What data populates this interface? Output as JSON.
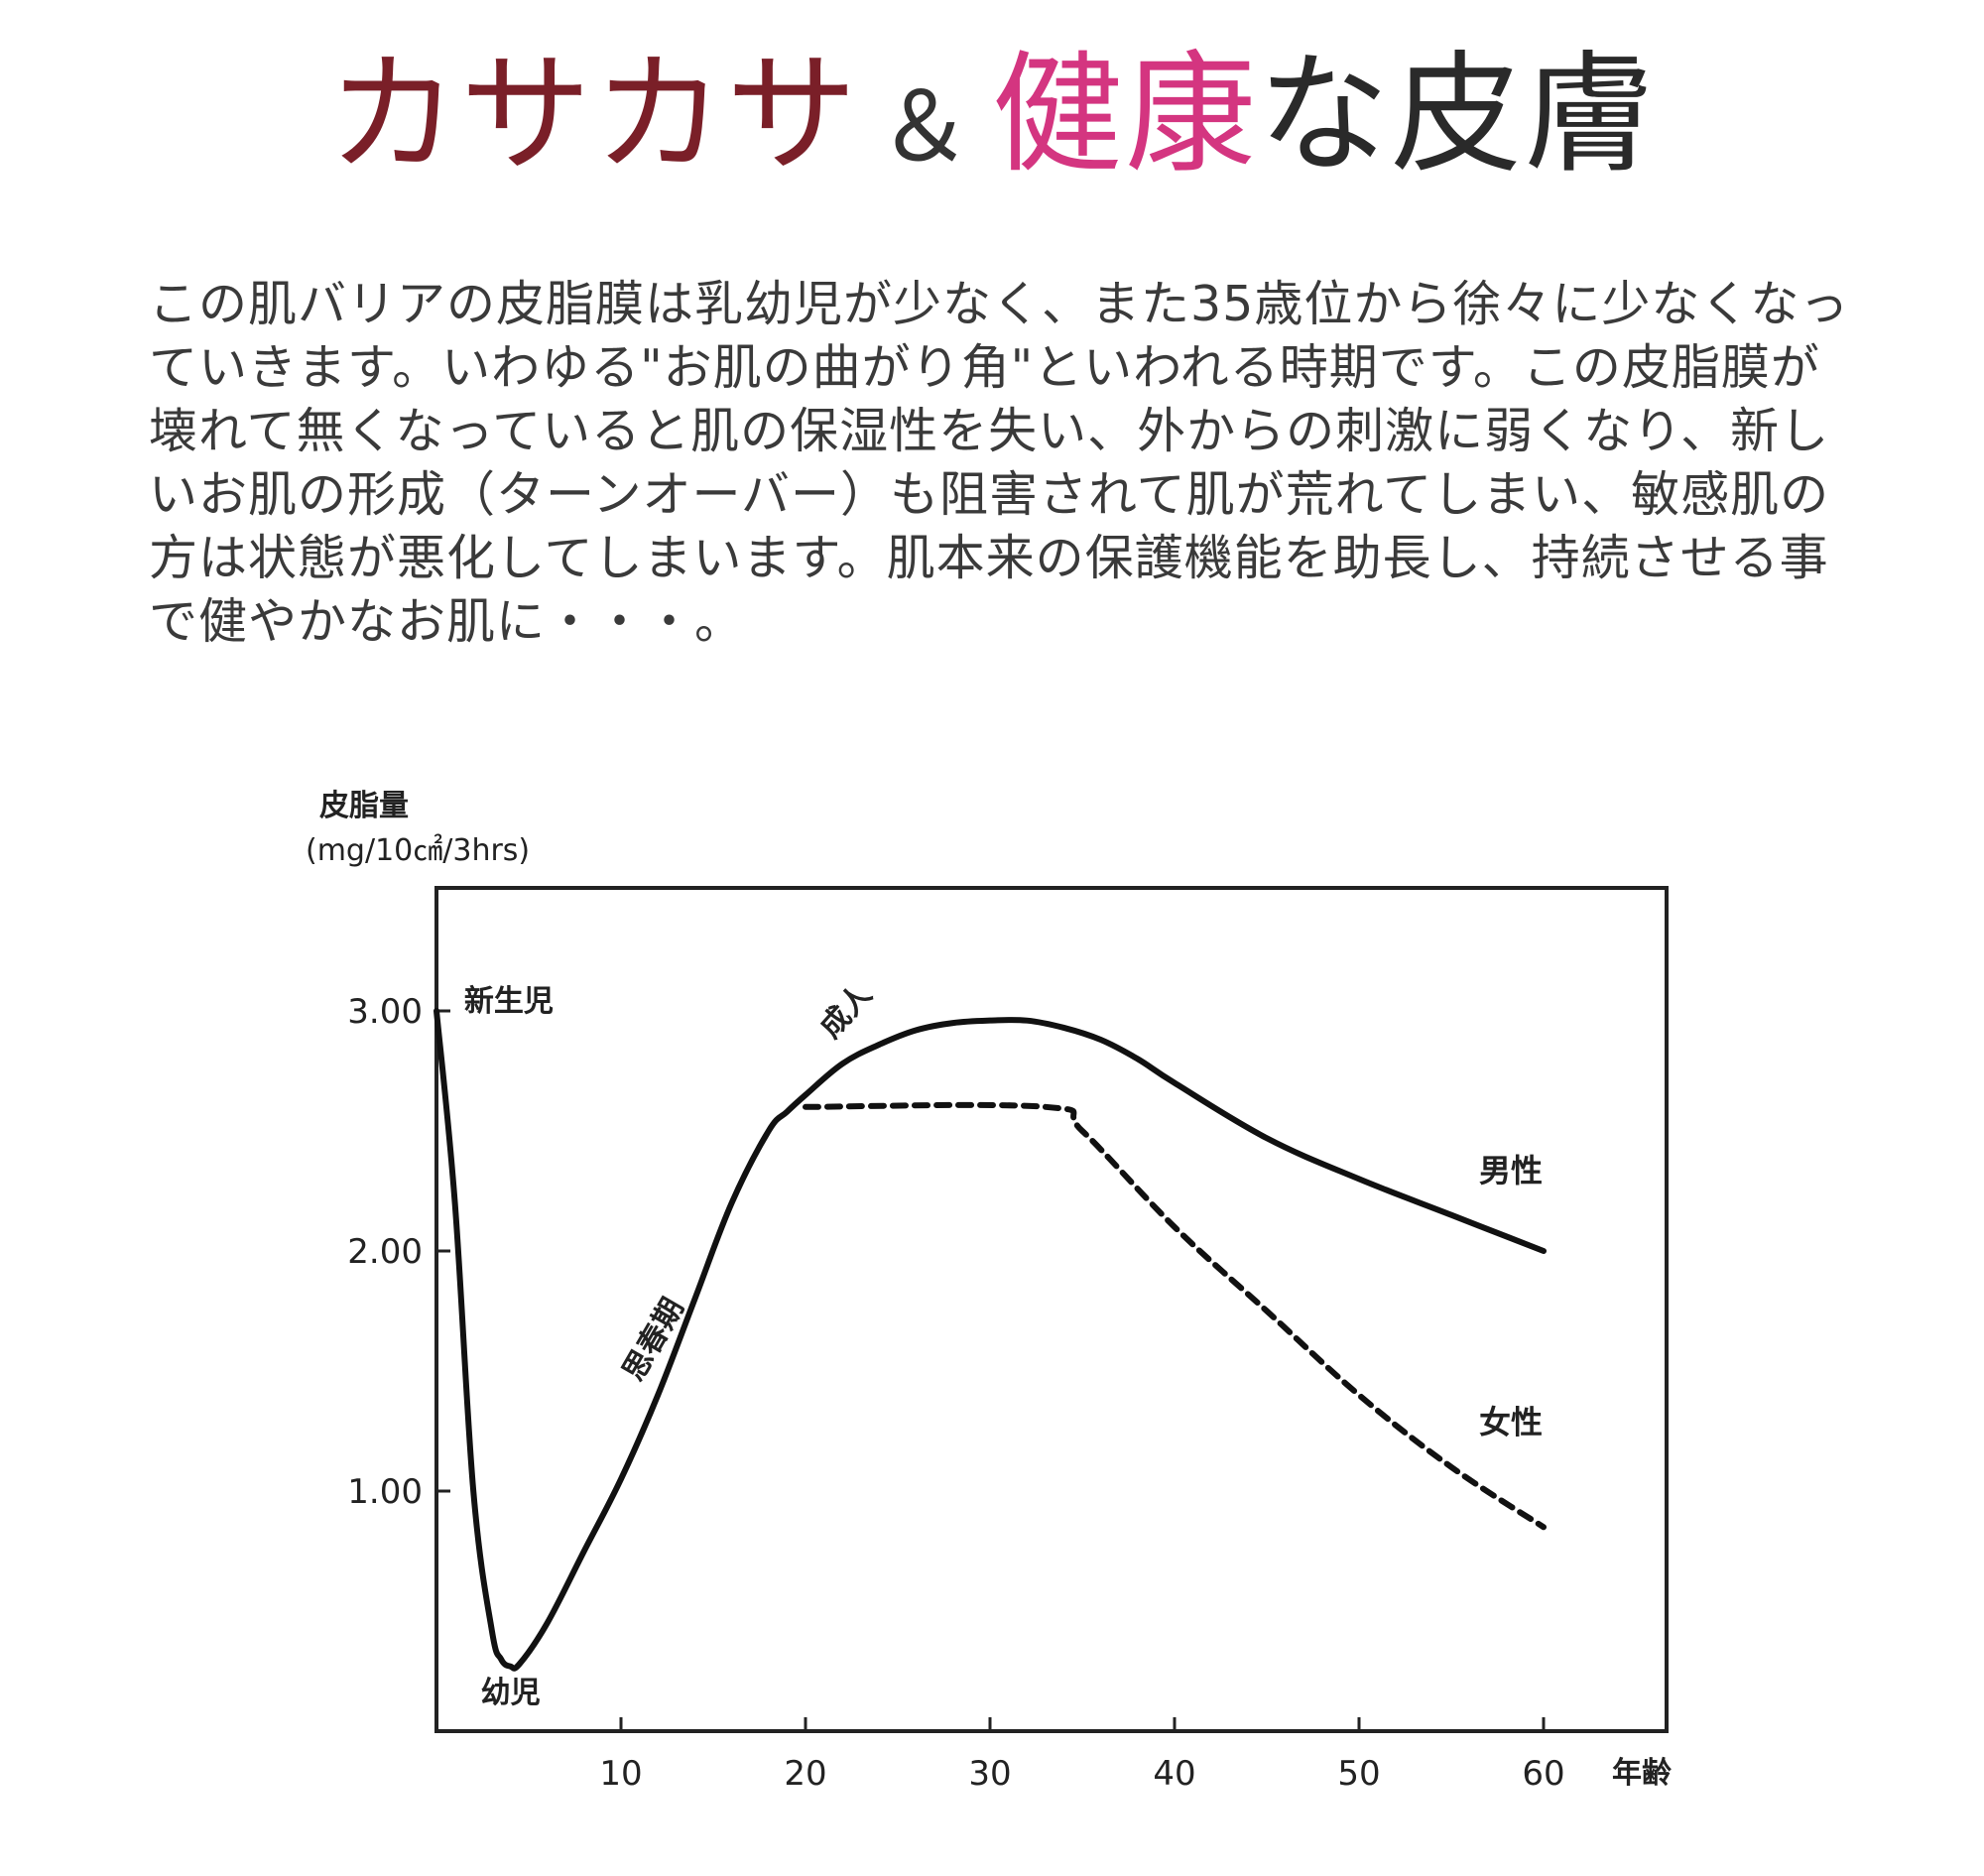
{
  "header": {
    "title_part1": "カサカサ",
    "title_part2": "＆",
    "title_part3": "健康",
    "title_part4": "な皮膚",
    "colors": {
      "dark_red": "#7a1f28",
      "pink": "#d43580"
    }
  },
  "description": "この肌バリアの皮脂膜は乳幼児が少なく、また35歳位から徐々に少なくなっていきます。いわゆる\"お肌の曲がり角\"といわれる時期です。この皮脂膜が壊れて無くなっていると肌の保湿性を失い、外からの刺激に弱くなり、新しいお肌の形成（ターンオーバー）も阻害されて肌が荒れてしまい、敏感肌の方は状態が悪化してしまいます。肌本来の保護機能を助長し、持続させる事で健やかなお肌に・・・。",
  "chart_data": {
    "type": "line",
    "ylabel": "皮脂量",
    "ylabel_unit": "(mg/10㎠/3hrs)",
    "xlabel": "年齢",
    "x_ticks": [
      "10",
      "20",
      "30",
      "40",
      "50",
      "60"
    ],
    "y_ticks": [
      "1.00",
      "2.00",
      "3.00"
    ],
    "xlim": [
      0,
      67
    ],
    "ylim": [
      0,
      3.5
    ],
    "series": [
      {
        "name": "男性",
        "style": "solid",
        "points": [
          [
            0,
            3.0
          ],
          [
            1,
            2.2
          ],
          [
            2,
            1.0
          ],
          [
            3,
            0.42
          ],
          [
            3.5,
            0.3
          ],
          [
            4,
            0.27
          ],
          [
            4.5,
            0.28
          ],
          [
            6,
            0.45
          ],
          [
            8,
            0.75
          ],
          [
            10,
            1.05
          ],
          [
            12,
            1.4
          ],
          [
            14,
            1.8
          ],
          [
            16,
            2.2
          ],
          [
            18,
            2.5
          ],
          [
            19,
            2.58
          ],
          [
            20,
            2.65
          ],
          [
            22,
            2.78
          ],
          [
            24,
            2.86
          ],
          [
            26,
            2.92
          ],
          [
            28,
            2.95
          ],
          [
            30,
            2.96
          ],
          [
            32,
            2.96
          ],
          [
            34,
            2.93
          ],
          [
            36,
            2.88
          ],
          [
            38,
            2.8
          ],
          [
            40,
            2.7
          ],
          [
            45,
            2.47
          ],
          [
            50,
            2.3
          ],
          [
            55,
            2.15
          ],
          [
            60,
            2.0
          ]
        ]
      },
      {
        "name": "女性",
        "style": "dashed",
        "points": [
          [
            20,
            2.6
          ],
          [
            33,
            2.6
          ],
          [
            35,
            2.5
          ],
          [
            40,
            2.1
          ],
          [
            45,
            1.75
          ],
          [
            50,
            1.4
          ],
          [
            55,
            1.1
          ],
          [
            60,
            0.85
          ]
        ]
      }
    ],
    "annotations": [
      {
        "text": "新生児",
        "x": 1.5,
        "y": 3.0
      },
      {
        "text": "幼児",
        "x": 2.4,
        "y": 0.12
      },
      {
        "text": "思春期",
        "x": 11,
        "y": 1.45
      },
      {
        "text": "成人",
        "x": 21.5,
        "y": 2.88
      }
    ]
  }
}
